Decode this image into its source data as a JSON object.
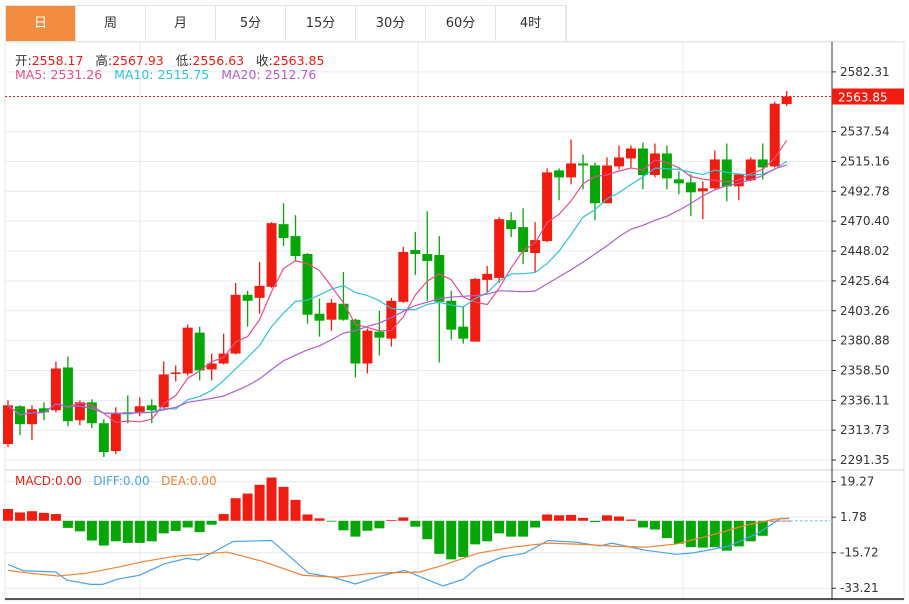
{
  "tabs": [
    "日",
    "周",
    "月",
    "5分",
    "15分",
    "30分",
    "60分",
    "4时"
  ],
  "active_tab": 0,
  "ohlc": {
    "open_label": "开:",
    "open": "2558.17",
    "high_label": "高:",
    "high": "2567.93",
    "low_label": "低:",
    "low": "2556.63",
    "close_label": "收:",
    "close": "2563.85"
  },
  "ma": {
    "ma5_label": "MA5:",
    "ma5": "2531.26",
    "ma10_label": "MA10:",
    "ma10": "2515.75",
    "ma20_label": "MA20:",
    "ma20": "2512.76"
  },
  "macd": {
    "macd_label": "MACD:",
    "macd": "0.00",
    "diff_label": "DIFF:",
    "diff": "0.00",
    "dea_label": "DEA:",
    "dea": "0.00"
  },
  "current_price": "2563.85",
  "colors": {
    "up": "#f01c10",
    "down": "#06a606",
    "ma5": "#ec4c8a",
    "ma10": "#2fc3d9",
    "ma20": "#b55ccf",
    "diff": "#4aa3ee",
    "dea": "#f28233",
    "accent": "#f28c40"
  },
  "chart_data": [
    {
      "type": "candlestick",
      "title": "K线",
      "y_ticks": [
        "2582.31",
        "2537.54",
        "2515.16",
        "2492.78",
        "2470.40",
        "2448.02",
        "2425.64",
        "2403.26",
        "2380.88",
        "2358.50",
        "2336.11",
        "2313.73",
        "2291.35"
      ],
      "ylim": [
        2283.9,
        2604.7
      ],
      "candles": [
        [
          2303.31,
          2332.4,
          2336.13,
          2301.07
        ],
        [
          2331.65,
          2318.23,
          2332.4,
          2310.02
        ],
        [
          2318.23,
          2329.42,
          2332.4,
          2306.29
        ],
        [
          2330.16,
          2327.18,
          2334.64,
          2321.21
        ],
        [
          2328.67,
          2360.0,
          2365.22,
          2327.18
        ],
        [
          2360.75,
          2320.47,
          2368.95,
          2316.73
        ],
        [
          2321.21,
          2334.64,
          2336.13,
          2317.48
        ],
        [
          2334.64,
          2318.97,
          2336.88,
          2315.24
        ],
        [
          2318.97,
          2297.34,
          2321.96,
          2293.61
        ],
        [
          2298.08,
          2326.43,
          2330.91,
          2295.85
        ],
        [
          2327.18,
          2325.69,
          2339.86,
          2318.97
        ],
        [
          2326.43,
          2331.65,
          2338.37,
          2324.2
        ],
        [
          2332.4,
          2328.67,
          2336.88,
          2318.97
        ],
        [
          2330.91,
          2355.53,
          2365.22,
          2330.16
        ],
        [
          2356.27,
          2357.02,
          2362.24,
          2350.31
        ],
        [
          2356.27,
          2390.59,
          2392.83,
          2354.78
        ],
        [
          2386.86,
          2358.51,
          2391.33,
          2351.05
        ],
        [
          2359.26,
          2363.73,
          2371.19,
          2351.05
        ],
        [
          2363.73,
          2371.19,
          2386.11,
          2362.99
        ],
        [
          2371.19,
          2415.21,
          2424.16,
          2370.45
        ],
        [
          2415.21,
          2410.73,
          2418.19,
          2391.33
        ],
        [
          2412.97,
          2421.92,
          2439.82,
          2401.03
        ],
        [
          2421.17,
          2468.92,
          2469.66,
          2420.43
        ],
        [
          2468.17,
          2457.73,
          2483.84,
          2451.76
        ],
        [
          2459.22,
          2444.3,
          2474.89,
          2440.57
        ],
        [
          2445.79,
          2400.29,
          2446.54,
          2393.57
        ],
        [
          2401.03,
          2395.81,
          2412.22,
          2383.87
        ],
        [
          2396.56,
          2409.24,
          2412.22,
          2388.35
        ],
        [
          2408.49,
          2396.56,
          2432.36,
          2395.81
        ],
        [
          2396.56,
          2363.73,
          2397.3,
          2353.29
        ],
        [
          2363.73,
          2388.35,
          2389.84,
          2356.27
        ],
        [
          2387.6,
          2383.13,
          2403.27,
          2369.7
        ],
        [
          2382.38,
          2410.73,
          2412.97,
          2376.42
        ],
        [
          2409.98,
          2447.28,
          2451.01,
          2409.24
        ],
        [
          2448.78,
          2445.79,
          2462.2,
          2430.13
        ],
        [
          2445.79,
          2440.57,
          2477.87,
          2410.73
        ],
        [
          2445.05,
          2409.98,
          2459.22,
          2364.48
        ],
        [
          2410.73,
          2389.1,
          2418.19,
          2381.64
        ],
        [
          2391.33,
          2382.38,
          2407.0,
          2378.65
        ],
        [
          2380.12,
          2427.14,
          2427.89,
          2380.12
        ],
        [
          2426.4,
          2430.87,
          2436.84,
          2416.7
        ],
        [
          2427.89,
          2471.9,
          2473.39,
          2424.16
        ],
        [
          2471.16,
          2464.44,
          2477.12,
          2458.47
        ],
        [
          2465.93,
          2447.28,
          2480.11,
          2438.33
        ],
        [
          2446.54,
          2456.24,
          2469.66,
          2432.36
        ],
        [
          2455.49,
          2506.96,
          2509.95,
          2454.75
        ],
        [
          2508.45,
          2503.23,
          2509.95,
          2486.08
        ],
        [
          2503.23,
          2513.68,
          2531.58,
          2498.01
        ],
        [
          2513.68,
          2512.19,
          2520.39,
          2494.28
        ],
        [
          2512.19,
          2483.84,
          2514.42,
          2471.16
        ],
        [
          2483.84,
          2512.19,
          2518.15,
          2483.84
        ],
        [
          2511.44,
          2518.15,
          2527.11,
          2509.2
        ],
        [
          2517.41,
          2524.87,
          2527.11,
          2510.69
        ],
        [
          2524.87,
          2504.98,
          2529.35,
          2494.28
        ],
        [
          2504.98,
          2521.14,
          2528.6,
          2503.23
        ],
        [
          2521.14,
          2502.49,
          2527.11,
          2494.28
        ],
        [
          2501.74,
          2498.76,
          2507.71,
          2490.55
        ],
        [
          2499.5,
          2492.04,
          2505.47,
          2474.14
        ],
        [
          2492.79,
          2495.03,
          2500.25,
          2471.9
        ],
        [
          2495.03,
          2516.66,
          2523.38,
          2494.28
        ],
        [
          2516.66,
          2496.52,
          2528.6,
          2485.33
        ],
        [
          2496.52,
          2505.47,
          2506.22,
          2486.08
        ],
        [
          2501.0,
          2516.66,
          2518.15,
          2500.25
        ],
        [
          2516.66,
          2510.69,
          2528.6,
          2501.74
        ],
        [
          2511.44,
          2558.44,
          2559.93,
          2510.69
        ],
        [
          2558.17,
          2563.85,
          2567.93,
          2556.63
        ]
      ],
      "candle_fields": [
        "open",
        "close",
        "high",
        "low"
      ]
    },
    {
      "type": "bar+line",
      "title": "MACD",
      "y_ticks": [
        "19.27",
        "1.78",
        "-15.72",
        "-33.21"
      ],
      "ylim": [
        -39.0,
        25.0
      ],
      "histogram": [
        5.8,
        4.1,
        4.7,
        3.9,
        3.3,
        -3.5,
        -5.2,
        -9.7,
        -12.2,
        -10.1,
        -10.9,
        -10.9,
        -10.1,
        -6.2,
        -5.0,
        -3.3,
        -5.6,
        -1.9,
        3.3,
        11.1,
        13.4,
        17.7,
        21.3,
        16.7,
        10.3,
        3.1,
        1.2,
        -0.4,
        -4.7,
        -7.8,
        -4.9,
        -3.7,
        0.4,
        1.6,
        -2.9,
        -9.1,
        -16.3,
        -19.0,
        -17.8,
        -11.6,
        -10.1,
        -6.2,
        -7.8,
        -7.8,
        -3.3,
        3.1,
        2.7,
        2.9,
        1.4,
        -0.6,
        2.7,
        2.1,
        0.6,
        -3.3,
        -4.3,
        -8.5,
        -11.3,
        -13.0,
        -13.2,
        -13.0,
        -14.7,
        -12.6,
        -10.1,
        -7.4,
        0,
        0
      ],
      "diff": [
        [
          0,
          -21.5
        ],
        [
          1.3,
          -24.6
        ],
        [
          4,
          -25.2
        ],
        [
          4.9,
          -29.2
        ],
        [
          6.9,
          -31.3
        ],
        [
          7.9,
          -31.3
        ],
        [
          9.1,
          -28.8
        ],
        [
          11,
          -26.8
        ],
        [
          13,
          -21.3
        ],
        [
          14.9,
          -18.5
        ],
        [
          15.9,
          -19.3
        ],
        [
          18.8,
          -10.2
        ],
        [
          22,
          -9.7
        ],
        [
          25.1,
          -25.8
        ],
        [
          27.1,
          -27.8
        ],
        [
          29,
          -31.1
        ],
        [
          31,
          -27.4
        ],
        [
          33.1,
          -24.4
        ],
        [
          36.3,
          -32.1
        ],
        [
          38,
          -28.8
        ],
        [
          39.2,
          -22.9
        ],
        [
          41.2,
          -17.9
        ],
        [
          43.1,
          -16.0
        ],
        [
          45.1,
          -9.7
        ],
        [
          47.5,
          -10.6
        ],
        [
          49.4,
          -12.4
        ],
        [
          50.4,
          -11.0
        ],
        [
          53.3,
          -14.6
        ],
        [
          55.8,
          -16.5
        ],
        [
          57.2,
          -15.8
        ],
        [
          60.1,
          -12.6
        ],
        [
          62.6,
          -6.1
        ],
        [
          64.5,
          1.2
        ],
        [
          65.2,
          1.2
        ]
      ],
      "dea": [
        [
          0,
          -24.4
        ],
        [
          1.8,
          -25.8
        ],
        [
          4.2,
          -27.2
        ],
        [
          6.6,
          -25.8
        ],
        [
          9.1,
          -22.9
        ],
        [
          11.5,
          -19.9
        ],
        [
          13.9,
          -17.5
        ],
        [
          18.3,
          -15.4
        ],
        [
          21.2,
          -19.9
        ],
        [
          24.6,
          -26.8
        ],
        [
          27.5,
          -27.8
        ],
        [
          30.5,
          -25.8
        ],
        [
          34.4,
          -25.2
        ],
        [
          36.3,
          -21.9
        ],
        [
          39.2,
          -16.0
        ],
        [
          42.1,
          -13.0
        ],
        [
          45.1,
          -11.0
        ],
        [
          48,
          -11.6
        ],
        [
          50.9,
          -12.6
        ],
        [
          53.3,
          -13.0
        ],
        [
          55.8,
          -11.4
        ],
        [
          58.7,
          -7.1
        ],
        [
          61.6,
          -2.2
        ],
        [
          64,
          0.8
        ],
        [
          65.2,
          1.2
        ]
      ]
    }
  ]
}
